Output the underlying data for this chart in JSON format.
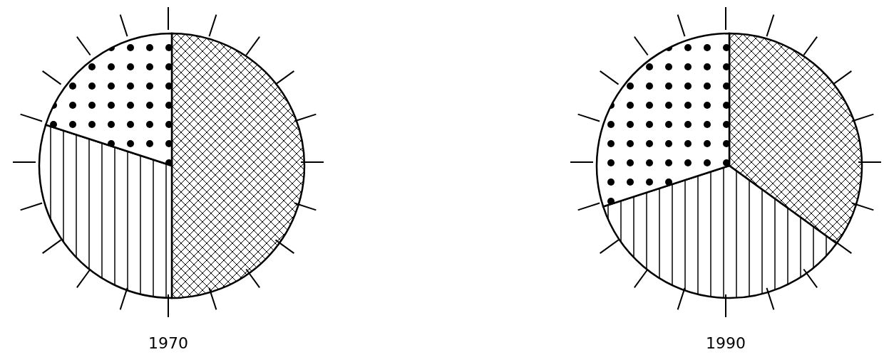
{
  "chart_data": [
    {
      "type": "pie",
      "title": "1970",
      "categories": [
        null,
        null,
        null
      ],
      "values": [
        50,
        30,
        20
      ],
      "colors": [
        "#000000",
        "#000000",
        "#000000"
      ],
      "legend": false
    },
    {
      "type": "pie",
      "title": "1990",
      "categories": [
        null,
        null,
        null
      ],
      "values": [
        35,
        35,
        30
      ],
      "colors": [
        "#000000",
        "#000000",
        "#000000"
      ],
      "legend": false
    }
  ]
}
